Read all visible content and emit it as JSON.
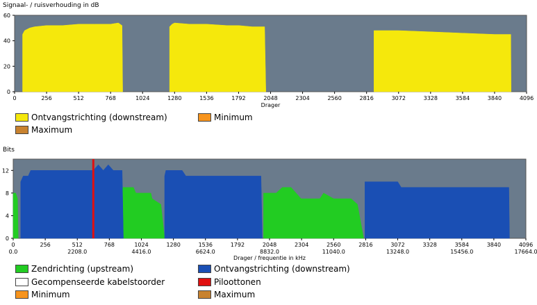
{
  "chart_data": [
    {
      "type": "area",
      "title": "Signaal- / ruisverhouding in dB",
      "xlabel": "Drager",
      "ylabel": "",
      "xlim": [
        0,
        4096
      ],
      "ylim": [
        0,
        60
      ],
      "xticks": [
        0,
        256,
        512,
        768,
        1024,
        1280,
        1536,
        1792,
        2048,
        2304,
        2560,
        2816,
        3072,
        3328,
        3584,
        3840,
        4096
      ],
      "yticks": [
        0,
        20,
        40,
        60
      ],
      "grid": false,
      "background": "#6a7b8c",
      "series": [
        {
          "name": "Ontvangstrichting (downstream)",
          "color": "#f5e80c",
          "segments": [
            [
              [
                64,
                0
              ],
              [
                64,
                45
              ],
              [
                80,
                48
              ],
              [
                120,
                50
              ],
              [
                160,
                51
              ],
              [
                256,
                52
              ],
              [
                384,
                52
              ],
              [
                512,
                53
              ],
              [
                640,
                53
              ],
              [
                768,
                53
              ],
              [
                830,
                54
              ],
              [
                860,
                52
              ],
              [
                865,
                0
              ]
            ],
            [
              [
                1240,
                0
              ],
              [
                1240,
                51
              ],
              [
                1260,
                53
              ],
              [
                1280,
                54
              ],
              [
                1400,
                53
              ],
              [
                1536,
                53
              ],
              [
                1700,
                52
              ],
              [
                1792,
                52
              ],
              [
                1900,
                51
              ],
              [
                2000,
                51
              ],
              [
                2010,
                0
              ]
            ],
            [
              [
                2875,
                0
              ],
              [
                2875,
                48
              ],
              [
                3072,
                48
              ],
              [
                3328,
                47
              ],
              [
                3584,
                46
              ],
              [
                3840,
                45
              ],
              [
                3970,
                45
              ],
              [
                3972,
                0
              ]
            ]
          ]
        },
        {
          "name": "Minimum",
          "color": "#f7941d",
          "segments": []
        },
        {
          "name": "Maximum",
          "color": "#c8822f",
          "segments": []
        }
      ]
    },
    {
      "type": "area",
      "title": "Bits",
      "xlabel": "Drager / frequentie in kHz",
      "ylabel": "",
      "xlim": [
        0,
        4096
      ],
      "ylim": [
        0,
        14
      ],
      "xticks": [
        0,
        256,
        512,
        768,
        1024,
        1280,
        1536,
        1792,
        2048,
        2304,
        2560,
        2816,
        3072,
        3328,
        3584,
        3840,
        4096
      ],
      "xticks_khz": [
        "0.0",
        "2208.0",
        "4416.0",
        "6624.0",
        "8832.0",
        "11040.0",
        "13248.0",
        "15456.0",
        "17664.0"
      ],
      "yticks": [
        0,
        4,
        8,
        12
      ],
      "grid": false,
      "background": "#6a7b8c",
      "series": [
        {
          "name": "Zendrichting (upstream)",
          "color": "#22cc22",
          "segments": [
            [
              [
                0,
                0
              ],
              [
                0,
                8
              ],
              [
                20,
                8
              ],
              [
                35,
                7
              ],
              [
                40,
                0
              ]
            ],
            [
              [
                870,
                0
              ],
              [
                870,
                9
              ],
              [
                960,
                9
              ],
              [
                980,
                8
              ],
              [
                1100,
                8
              ],
              [
                1110,
                7
              ],
              [
                1180,
                6
              ],
              [
                1210,
                0
              ]
            ],
            [
              [
                2000,
                0
              ],
              [
                2000,
                8
              ],
              [
                2100,
                8
              ],
              [
                2150,
                9
              ],
              [
                2220,
                9
              ],
              [
                2260,
                8
              ],
              [
                2300,
                7
              ],
              [
                2450,
                7
              ],
              [
                2480,
                8
              ],
              [
                2560,
                7
              ],
              [
                2700,
                7
              ],
              [
                2750,
                6
              ],
              [
                2800,
                0
              ]
            ]
          ]
        },
        {
          "name": "Ontvangstrichting (downstream)",
          "color": "#1a4fb4",
          "segments": [
            [
              [
                60,
                0
              ],
              [
                60,
                10
              ],
              [
                80,
                11
              ],
              [
                120,
                11
              ],
              [
                140,
                12
              ],
              [
                512,
                12
              ],
              [
                600,
                12
              ],
              [
                640,
                12
              ],
              [
                680,
                13
              ],
              [
                720,
                12
              ],
              [
                760,
                13
              ],
              [
                800,
                12
              ],
              [
                870,
                12
              ],
              [
                880,
                0
              ]
            ],
            [
              [
                1210,
                0
              ],
              [
                1210,
                11
              ],
              [
                1220,
                12
              ],
              [
                1350,
                12
              ],
              [
                1380,
                11
              ],
              [
                1536,
                11
              ],
              [
                1792,
                11
              ],
              [
                1980,
                11
              ],
              [
                1990,
                0
              ]
            ],
            [
              [
                2810,
                0
              ],
              [
                2810,
                10
              ],
              [
                3072,
                10
              ],
              [
                3100,
                9
              ],
              [
                3328,
                9
              ],
              [
                3584,
                9
              ],
              [
                3840,
                9
              ],
              [
                3960,
                9
              ],
              [
                3965,
                0
              ]
            ]
          ]
        },
        {
          "name": "Gecompenseerde kabelstoorder",
          "color": "#ffffff",
          "segments": []
        },
        {
          "name": "Piloottonen",
          "color": "#e01010",
          "x": [
            640
          ]
        },
        {
          "name": "Minimum",
          "color": "#f7941d",
          "segments": []
        },
        {
          "name": "Maximum",
          "color": "#c8822f",
          "segments": []
        }
      ]
    }
  ]
}
